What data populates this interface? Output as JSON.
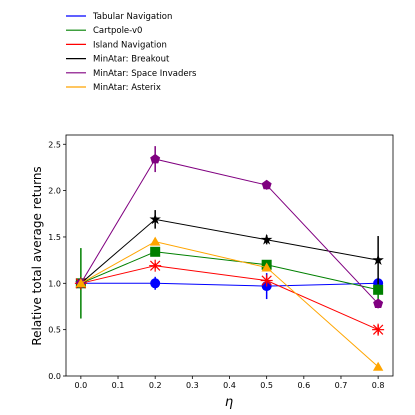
{
  "chart_data": {
    "type": "line",
    "xlabel": "η",
    "ylabel": "Relative total average returns",
    "xlim": [
      -0.04,
      0.84
    ],
    "ylim": [
      0.0,
      2.6
    ],
    "xticks": [
      0.0,
      0.1,
      0.2,
      0.3,
      0.4,
      0.5,
      0.6,
      0.7,
      0.8
    ],
    "xtick_labels": [
      "0.0",
      "0.1",
      "0.2",
      "0.3",
      "0.4",
      "0.5",
      "0.6",
      "0.7",
      "0.8"
    ],
    "yticks": [
      0.0,
      0.5,
      1.0,
      1.5,
      2.0,
      2.5
    ],
    "ytick_labels": [
      "0.0",
      "0.5",
      "1.0",
      "1.5",
      "2.0",
      "2.5"
    ],
    "grid": false,
    "legend_position": "above-plot-left",
    "x": [
      0.0,
      0.2,
      0.5,
      0.8
    ],
    "series": [
      {
        "name": "Tabular Navigation",
        "color": "#0000ff",
        "marker": "circle",
        "values": [
          1.0,
          1.0,
          0.97,
          1.0
        ],
        "errors": [
          0.02,
          0.07,
          0.14,
          0.06
        ]
      },
      {
        "name": "Cartpole-v0",
        "color": "#008000",
        "marker": "square",
        "values": [
          1.0,
          1.34,
          1.2,
          0.93
        ],
        "errors": [
          0.38,
          0.05,
          0.04,
          0.1
        ]
      },
      {
        "name": "Island Navigation",
        "color": "#ff0000",
        "marker": "x",
        "values": [
          1.0,
          1.19,
          1.03,
          0.5
        ],
        "errors": [
          0.02,
          0.03,
          0.04,
          0.05
        ]
      },
      {
        "name": "MinAtar: Breakout",
        "color": "#000000",
        "marker": "star",
        "values": [
          1.0,
          1.69,
          1.47,
          1.25
        ],
        "errors": [
          0.03,
          0.1,
          0.05,
          0.26
        ]
      },
      {
        "name": "MinAtar: Space Invaders",
        "color": "#800080",
        "marker": "pentagon",
        "values": [
          1.0,
          2.34,
          2.06,
          0.78
        ],
        "errors": [
          0.02,
          0.14,
          0.05,
          0.05
        ]
      },
      {
        "name": "MinAtar: Asterix",
        "color": "#ffa500",
        "marker": "triangle",
        "values": [
          1.0,
          1.45,
          1.17,
          0.1
        ],
        "errors": [
          0.02,
          0.04,
          0.04,
          0.03
        ]
      }
    ]
  }
}
